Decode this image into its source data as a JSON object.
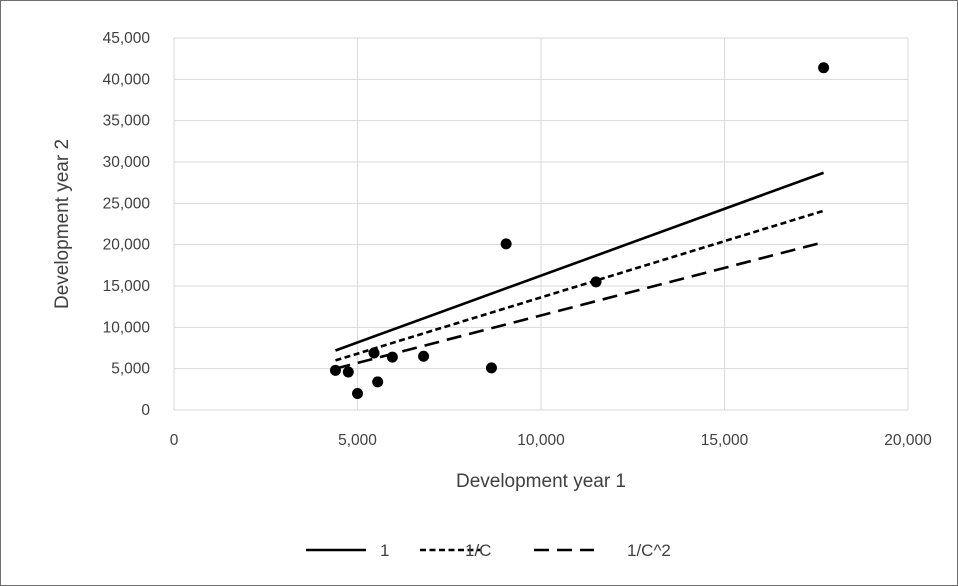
{
  "chart_data": {
    "type": "scatter",
    "xlabel": "Development year 1",
    "ylabel": "Development year 2",
    "xlim": [
      0,
      20000
    ],
    "ylim": [
      0,
      45000
    ],
    "x_ticks": [
      0,
      5000,
      10000,
      15000,
      20000
    ],
    "x_tick_labels": [
      "0",
      "5,000",
      "10,000",
      "15,000",
      "20,000"
    ],
    "y_ticks": [
      0,
      5000,
      10000,
      15000,
      20000,
      25000,
      30000,
      35000,
      40000,
      45000
    ],
    "y_tick_labels": [
      "0",
      "5,000",
      "10,000",
      "15,000",
      "20,000",
      "25,000",
      "30,000",
      "35,000",
      "40,000",
      "45,000"
    ],
    "grid": true,
    "legend_position": "bottom",
    "points": [
      {
        "x": 4400,
        "y": 4800
      },
      {
        "x": 4750,
        "y": 4600
      },
      {
        "x": 5000,
        "y": 2000
      },
      {
        "x": 5450,
        "y": 6900
      },
      {
        "x": 5550,
        "y": 3400
      },
      {
        "x": 5950,
        "y": 6400
      },
      {
        "x": 6800,
        "y": 6500
      },
      {
        "x": 8650,
        "y": 5100
      },
      {
        "x": 9050,
        "y": 20100
      },
      {
        "x": 11500,
        "y": 15500
      },
      {
        "x": 17700,
        "y": 41400
      }
    ],
    "series": [
      {
        "name": "1",
        "dash": "solid",
        "x": [
          4400,
          17700
        ],
        "y": [
          7200,
          28700
        ]
      },
      {
        "name": "1/C",
        "dash": "short-dash",
        "x": [
          4400,
          17700
        ],
        "y": [
          6000,
          24100
        ]
      },
      {
        "name": "1/C^2",
        "dash": "long-dash",
        "x": [
          4400,
          17700
        ],
        "y": [
          5000,
          20300
        ]
      }
    ],
    "colors": {
      "points": "#000000",
      "lines": "#000000",
      "grid": "#d9d9d9",
      "text": "#404040"
    }
  }
}
